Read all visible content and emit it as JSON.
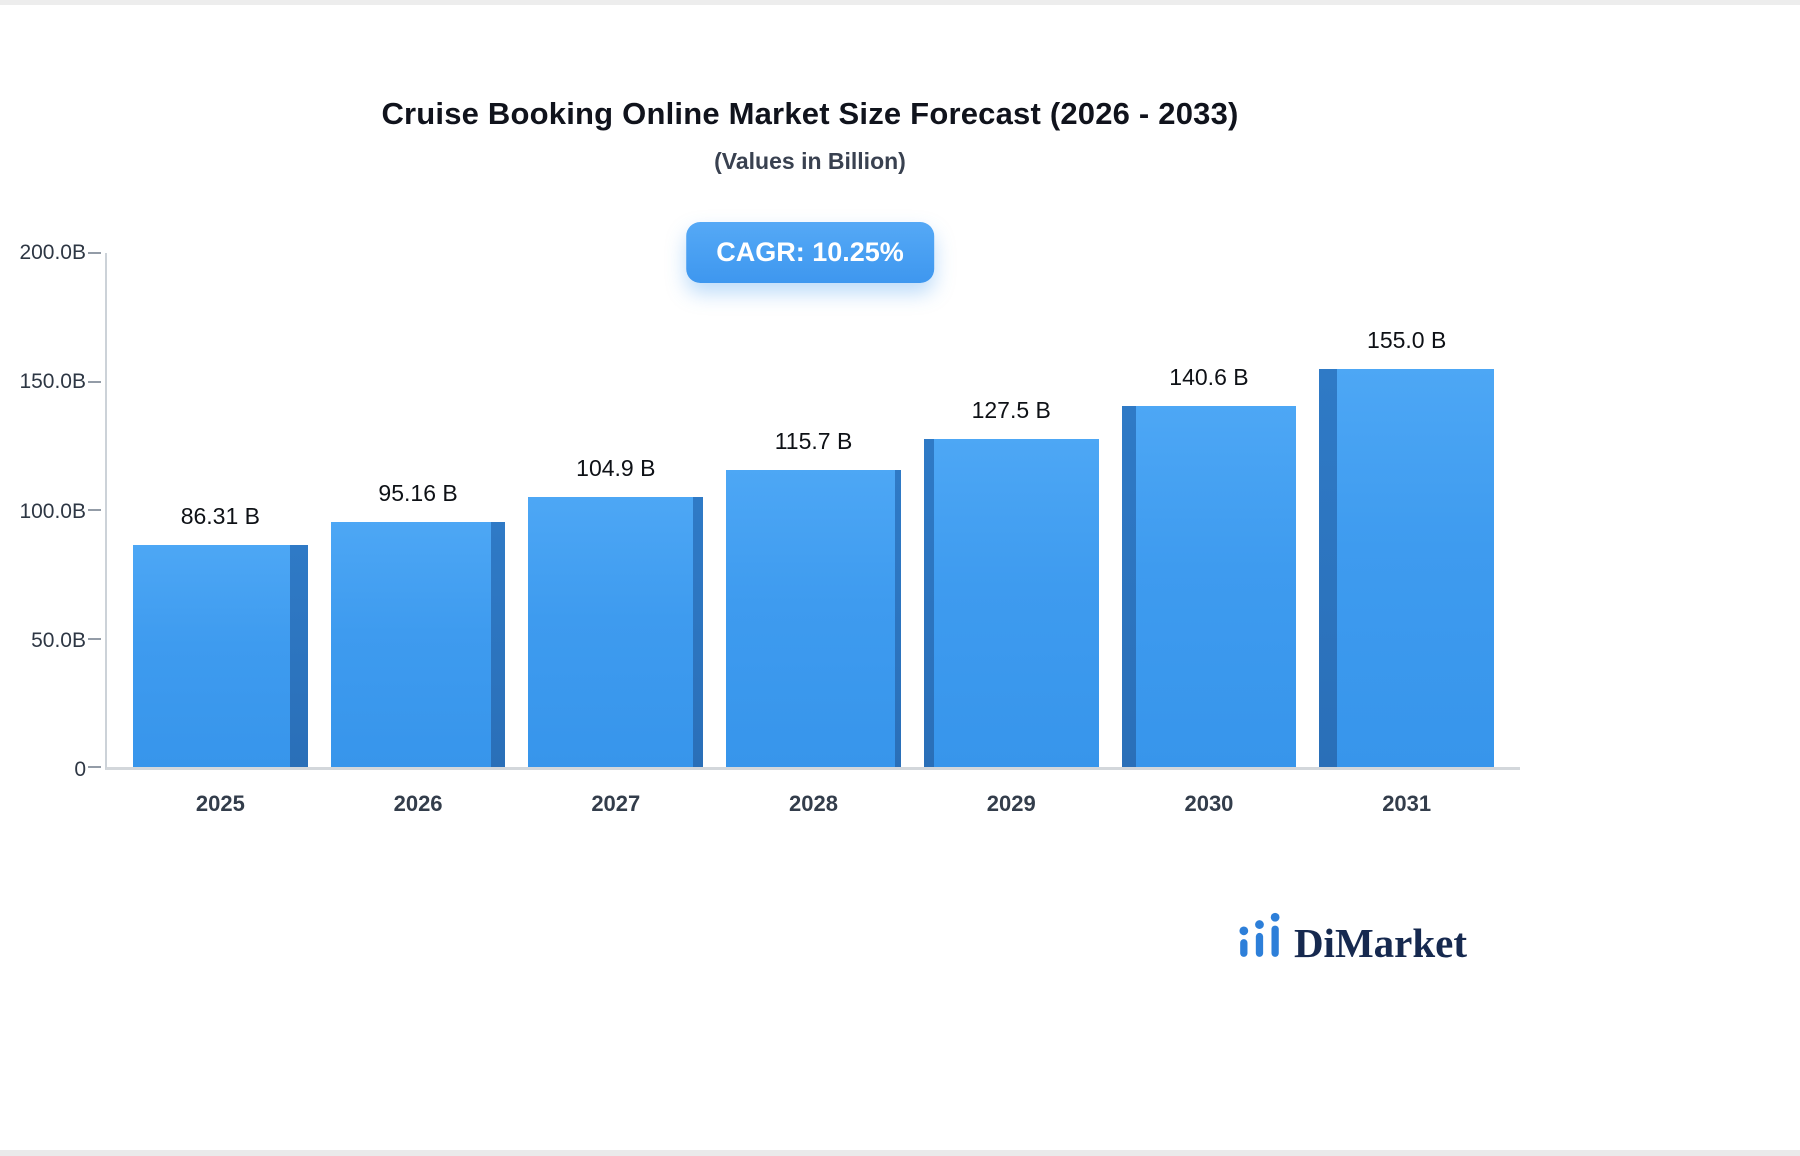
{
  "chart": {
    "title": "Cruise Booking Online Market Size Forecast (2026 - 2033)",
    "subtitle": "(Values in Billion)",
    "cagr_label": "CAGR: 10.25%"
  },
  "chart_data": {
    "type": "bar",
    "title": "Cruise Booking Online Market Size Forecast (2026 - 2033)",
    "subtitle": "(Values in Billion)",
    "cagr": "10.25%",
    "categories": [
      "2025",
      "2026",
      "2027",
      "2028",
      "2029",
      "2030",
      "2031"
    ],
    "values": [
      86.31,
      95.16,
      104.9,
      115.7,
      127.5,
      140.6,
      155.0
    ],
    "value_labels": [
      "86.31 B",
      "95.16 B",
      "104.9 B",
      "115.7 B",
      "127.5 B",
      "140.6 B",
      "155.0 B"
    ],
    "xlabel": "",
    "ylabel": "",
    "ylim": [
      0,
      200
    ],
    "yticks": [
      "200.0B",
      "150.0B",
      "100.0B",
      "50.0B",
      "0"
    ],
    "ytick_values": [
      200,
      150,
      100,
      50,
      0
    ],
    "grid": false,
    "legend": "none",
    "bar_color": "#3E9BEF",
    "bar_side_color": "#2C73BC",
    "badge_color": "#4AA0F2"
  },
  "logo": {
    "brand": "DiMarket",
    "icon": "bar-chart-dots-icon",
    "icon_color": "#2d7fd9",
    "text_color": "#16294f"
  }
}
